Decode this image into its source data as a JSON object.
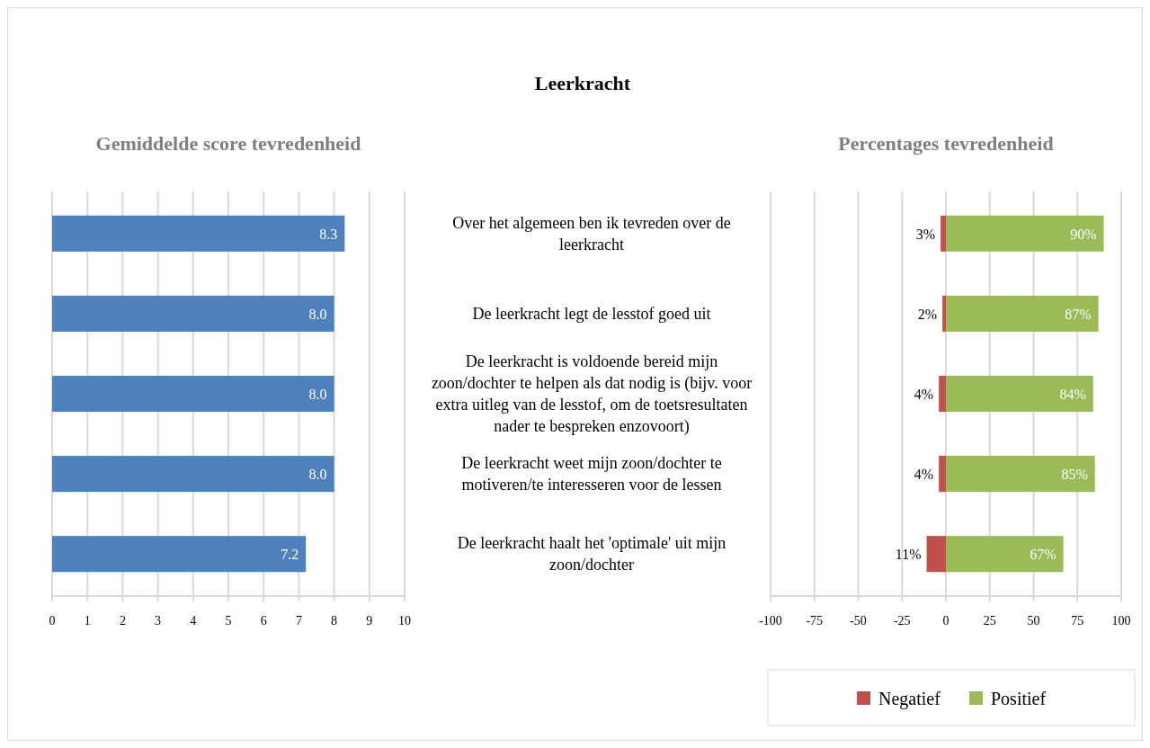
{
  "chart_data": [
    {
      "type": "bar",
      "orientation": "horizontal",
      "title": "Leerkracht",
      "subtitle": "Gemiddelde score tevredenheid",
      "categories": [
        "Over het algemeen ben ik tevreden over de leerkracht",
        "De leerkracht legt de lesstof goed uit",
        "De leerkracht is voldoende bereid mijn zoon/dochter te helpen als dat nodig is (bijv. voor extra uitleg van de lesstof, om de toetsresultaten nader te bespreken enzovoort)",
        "De leerkracht weet mijn zoon/dochter te motiveren/te interesseren voor de lessen",
        "De leerkracht haalt het 'optimale' uit mijn zoon/dochter"
      ],
      "values": [
        8.3,
        8.0,
        8.0,
        8.0,
        7.2
      ],
      "value_labels": [
        "8.3",
        "8.0",
        "8.0",
        "8.0",
        "7.2"
      ],
      "color": "#4f81bd",
      "xlim": [
        0,
        10
      ],
      "xticks": [
        0,
        1,
        2,
        3,
        4,
        5,
        6,
        7,
        8,
        9,
        10
      ],
      "grid": "x",
      "legend": false
    },
    {
      "type": "bar",
      "orientation": "horizontal",
      "title": "Percentages tevredenheid",
      "categories": [
        null,
        null,
        null,
        null,
        null
      ],
      "series": [
        {
          "name": "Negatief",
          "color": "#c0504d",
          "values": [
            3,
            2,
            4,
            4,
            11
          ],
          "base": [
            -3,
            -2,
            -4,
            -4,
            -11
          ],
          "value_labels": [
            "3%",
            "2%",
            "4%",
            "4%",
            "11%"
          ]
        },
        {
          "name": "Positief",
          "color": "#9bbb59",
          "values": [
            90,
            87,
            84,
            85,
            67
          ],
          "value_labels": [
            "90%",
            "87%",
            "84%",
            "85%",
            "67%"
          ]
        }
      ],
      "xlim": [
        -100,
        100
      ],
      "xticks": [
        -100,
        -75,
        -50,
        -25,
        0,
        25,
        50,
        75,
        100
      ],
      "grid": "x",
      "legend": "bottom"
    }
  ]
}
